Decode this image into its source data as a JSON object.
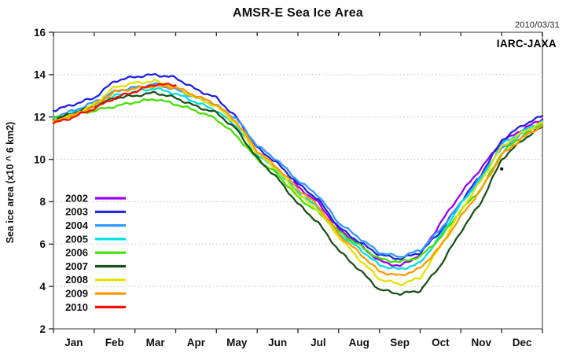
{
  "chart_data": {
    "type": "line",
    "title": "AMSR-E Sea Ice Area",
    "date_annotation": "2010/03/31",
    "source_annotation": "IARC-JAXA",
    "xlabel": "",
    "ylabel": "Sea ice area (x10 ^ 6 km2)",
    "ylim": [
      2,
      16
    ],
    "y_ticks": [
      2,
      4,
      6,
      8,
      10,
      12,
      14,
      16
    ],
    "x_tick_labels": [
      "Jan",
      "Feb",
      "Mar",
      "Apr",
      "May",
      "Jun",
      "Jul",
      "Aug",
      "Sep",
      "Oct",
      "Nov",
      "Dec"
    ],
    "x_unit": "months since Jan 1 (0 = Jan 1, 12 = Dec 31)",
    "grid": "horizontal dotted gridlines at 4,6,8,10,12,14",
    "legend_position": "middle-left inside plot",
    "series": [
      {
        "name": "2002",
        "color": "#9d00f0",
        "x": [
          5.9,
          6,
          6.5,
          7,
          7.5,
          8,
          8.5,
          9,
          9.5,
          10,
          10.5,
          11,
          11.5,
          12
        ],
        "values": [
          8.95,
          8.7,
          7.95,
          6.7,
          6.0,
          5.2,
          4.95,
          5.5,
          7.0,
          8.4,
          9.6,
          10.8,
          11.4,
          11.9
        ]
      },
      {
        "name": "2003",
        "color": "#2222e0",
        "x": [
          0,
          0.5,
          1,
          1.5,
          2,
          2.5,
          3,
          3.5,
          4,
          4.5,
          5,
          5.5,
          6,
          6.5,
          7,
          7.5,
          8,
          8.5,
          9,
          9.5,
          10,
          10.5,
          11,
          11.5,
          12
        ],
        "values": [
          12.3,
          12.6,
          12.9,
          13.7,
          13.9,
          14.0,
          13.85,
          13.3,
          12.9,
          11.95,
          10.55,
          9.8,
          8.85,
          8.1,
          6.8,
          6.1,
          5.5,
          5.3,
          5.6,
          6.6,
          8.0,
          9.3,
          10.9,
          11.6,
          12.05
        ]
      },
      {
        "name": "2004",
        "color": "#3399ff",
        "x": [
          0,
          0.5,
          1,
          1.5,
          2,
          2.5,
          3,
          3.5,
          4,
          4.5,
          5,
          5.5,
          6,
          6.5,
          7,
          7.5,
          8,
          8.5,
          9,
          9.5,
          10,
          10.5,
          11,
          11.5,
          12
        ],
        "values": [
          12.0,
          12.3,
          12.7,
          13.2,
          13.4,
          13.55,
          13.3,
          12.9,
          12.55,
          11.9,
          10.65,
          9.95,
          9.0,
          8.3,
          7.0,
          6.3,
          5.6,
          5.4,
          5.7,
          6.7,
          7.95,
          9.2,
          10.5,
          11.2,
          11.75
        ]
      },
      {
        "name": "2005",
        "color": "#00e0e0",
        "x": [
          0,
          0.5,
          1,
          1.5,
          2,
          2.5,
          3,
          3.5,
          4,
          4.5,
          5,
          5.5,
          6,
          6.5,
          7,
          7.5,
          8,
          8.5,
          9,
          9.5,
          10,
          10.5,
          11,
          11.5,
          12
        ],
        "values": [
          11.9,
          12.2,
          12.5,
          13.0,
          13.2,
          13.35,
          13.1,
          12.7,
          12.3,
          11.55,
          10.25,
          9.45,
          8.45,
          7.7,
          6.5,
          5.8,
          5.0,
          4.8,
          5.1,
          6.4,
          7.9,
          9.1,
          10.7,
          11.3,
          11.8
        ]
      },
      {
        "name": "2006",
        "color": "#44e000",
        "x": [
          0,
          0.5,
          1,
          1.5,
          2,
          2.5,
          3,
          3.5,
          4,
          4.5,
          5,
          5.5,
          6,
          6.5,
          7,
          7.5,
          8,
          8.5,
          9,
          9.5,
          10,
          10.5,
          11,
          11.5,
          12
        ],
        "values": [
          11.95,
          12.1,
          12.3,
          12.5,
          12.7,
          12.85,
          12.6,
          12.3,
          11.9,
          11.1,
          10.0,
          9.3,
          8.2,
          7.5,
          6.6,
          5.95,
          5.3,
          5.15,
          5.4,
          6.3,
          7.6,
          8.6,
          10.3,
          11.1,
          11.7
        ]
      },
      {
        "name": "2007",
        "color": "#1a521a",
        "x": [
          0,
          0.5,
          1,
          1.5,
          2,
          2.5,
          3,
          3.5,
          4,
          4.5,
          5,
          5.5,
          6,
          6.5,
          7,
          7.5,
          8,
          8.5,
          9,
          9.5,
          10,
          10.5,
          11,
          11.5,
          12
        ],
        "values": [
          11.85,
          12.2,
          12.5,
          12.9,
          13.0,
          13.15,
          12.9,
          12.5,
          12.2,
          11.4,
          10.05,
          9.1,
          7.9,
          7.0,
          5.7,
          4.8,
          3.85,
          3.65,
          3.8,
          5.0,
          6.6,
          8.0,
          10.0,
          10.9,
          11.55
        ]
      },
      {
        "name": "2008",
        "color": "#e2e200",
        "x": [
          0,
          0.5,
          1,
          1.5,
          2,
          2.5,
          3,
          3.5,
          4,
          4.5,
          5,
          5.5,
          6,
          6.5,
          7,
          7.5,
          8,
          8.5,
          9,
          9.5,
          10,
          10.5,
          11,
          11.5,
          12
        ],
        "values": [
          11.75,
          12.1,
          12.6,
          13.4,
          13.6,
          13.7,
          13.4,
          12.9,
          12.5,
          11.65,
          10.3,
          9.5,
          8.35,
          7.6,
          6.35,
          5.3,
          4.35,
          4.1,
          4.4,
          5.9,
          7.6,
          9.0,
          10.6,
          11.25,
          11.75
        ]
      },
      {
        "name": "2009",
        "color": "#ff9900",
        "x": [
          0,
          0.5,
          1,
          1.5,
          2,
          2.5,
          3,
          3.5,
          4,
          4.5,
          5,
          5.5,
          6,
          6.5,
          7,
          7.5,
          8,
          8.5,
          9,
          9.5,
          10,
          10.5,
          11,
          11.5,
          12
        ],
        "values": [
          11.8,
          12.1,
          12.5,
          13.2,
          13.35,
          13.45,
          13.4,
          13.0,
          12.6,
          11.75,
          10.4,
          9.6,
          8.6,
          7.8,
          6.45,
          5.6,
          4.7,
          4.5,
          4.85,
          5.9,
          7.3,
          8.6,
          10.2,
          11.0,
          11.6
        ]
      },
      {
        "name": "2010",
        "color": "#ee1100",
        "x": [
          0,
          0.5,
          1,
          1.5,
          2,
          2.5,
          3
        ],
        "values": [
          11.7,
          12.0,
          12.4,
          12.9,
          13.2,
          13.55,
          13.5
        ]
      }
    ],
    "artifact_dot": {
      "x": 11.0,
      "value": 9.55,
      "color": "#111111"
    }
  }
}
